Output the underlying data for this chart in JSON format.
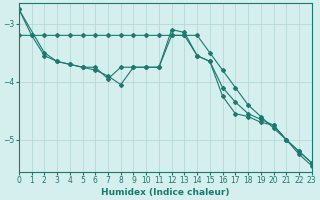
{
  "xlabel": "Humidex (Indice chaleur)",
  "background_color": "#d5eeee",
  "grid_color": "#b8d8d8",
  "line_color": "#1a7a6e",
  "xlim": [
    0,
    23
  ],
  "ylim": [
    -5.55,
    -2.65
  ],
  "yticks": [
    -5,
    -4,
    -3
  ],
  "xticks": [
    0,
    1,
    2,
    3,
    4,
    5,
    6,
    7,
    8,
    9,
    10,
    11,
    12,
    13,
    14,
    15,
    16,
    17,
    18,
    19,
    20,
    21,
    22,
    23
  ],
  "series1_x": [
    0,
    1,
    2,
    3,
    4,
    5,
    6,
    7,
    8,
    9,
    10,
    11,
    12,
    13,
    14,
    15,
    16,
    17,
    18,
    19,
    20,
    21,
    22,
    23
  ],
  "series1_y": [
    -3.2,
    -3.2,
    -3.2,
    -3.2,
    -3.2,
    -3.2,
    -3.2,
    -3.2,
    -3.2,
    -3.2,
    -3.2,
    -3.2,
    -3.2,
    -3.2,
    -3.2,
    -3.5,
    -3.8,
    -4.1,
    -4.4,
    -4.6,
    -4.8,
    -5.0,
    -5.2,
    -5.4
  ],
  "series2_x": [
    0,
    1,
    2,
    3,
    4,
    5,
    6,
    7,
    8,
    9,
    10,
    11,
    12,
    13,
    14,
    15,
    16,
    17,
    18,
    19,
    20,
    21,
    22,
    23
  ],
  "series2_y": [
    -2.75,
    -3.2,
    -3.55,
    -3.65,
    -3.7,
    -3.75,
    -3.75,
    -3.95,
    -3.75,
    -3.75,
    -3.75,
    -3.75,
    -3.2,
    -3.2,
    -3.55,
    -3.65,
    -4.1,
    -4.35,
    -4.55,
    -4.65,
    -4.75,
    -5.0,
    -5.2,
    -5.4
  ],
  "series3_x": [
    0,
    2,
    3,
    4,
    5,
    6,
    7,
    8,
    9,
    10,
    11,
    12,
    13,
    14,
    15,
    16,
    17,
    18,
    19,
    20,
    21,
    22,
    23
  ],
  "series3_y": [
    -2.75,
    -3.5,
    -3.65,
    -3.7,
    -3.75,
    -3.8,
    -3.9,
    -4.05,
    -3.75,
    -3.75,
    -3.75,
    -3.1,
    -3.15,
    -3.55,
    -3.65,
    -4.25,
    -4.55,
    -4.6,
    -4.7,
    -4.75,
    -5.0,
    -5.25,
    -5.45
  ]
}
